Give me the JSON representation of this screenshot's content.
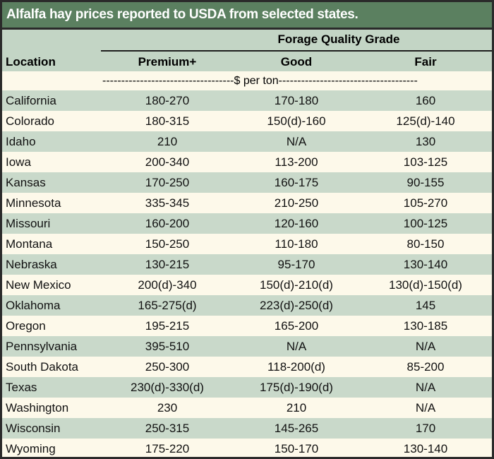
{
  "title": "Alfalfa hay prices reported to USDA from selected states.",
  "header": {
    "group": "Forage Quality Grade",
    "location": "Location",
    "columns": [
      "Premium+",
      "Good",
      "Fair"
    ],
    "unit": "-----------------------------------$ per ton-------------------------------------"
  },
  "rows": [
    {
      "location": "California",
      "premium": "180-270",
      "good": "170-180",
      "fair": "160"
    },
    {
      "location": "Colorado",
      "premium": "180-315",
      "good": "150(d)-160",
      "fair": "125(d)-140"
    },
    {
      "location": "Idaho",
      "premium": "210",
      "good": "N/A",
      "fair": "130"
    },
    {
      "location": "Iowa",
      "premium": "200-340",
      "good": "113-200",
      "fair": "103-125"
    },
    {
      "location": "Kansas",
      "premium": "170-250",
      "good": "160-175",
      "fair": "90-155"
    },
    {
      "location": "Minnesota",
      "premium": "335-345",
      "good": "210-250",
      "fair": "105-270"
    },
    {
      "location": "Missouri",
      "premium": "160-200",
      "good": "120-160",
      "fair": "100-125"
    },
    {
      "location": "Montana",
      "premium": "150-250",
      "good": "110-180",
      "fair": "80-150"
    },
    {
      "location": "Nebraska",
      "premium": "130-215",
      "good": "95-170",
      "fair": "130-140"
    },
    {
      "location": "New Mexico",
      "premium": "200(d)-340",
      "good": "150(d)-210(d)",
      "fair": "130(d)-150(d)"
    },
    {
      "location": "Oklahoma",
      "premium": "165-275(d)",
      "good": "223(d)-250(d)",
      "fair": "145"
    },
    {
      "location": "Oregon",
      "premium": "195-215",
      "good": "165-200",
      "fair": "130-185"
    },
    {
      "location": "Pennsylvania",
      "premium": "395-510",
      "good": "N/A",
      "fair": "N/A"
    },
    {
      "location": "South Dakota",
      "premium": "250-300",
      "good": "118-200(d)",
      "fair": "85-200"
    },
    {
      "location": "Texas",
      "premium": "230(d)-330(d)",
      "good": "175(d)-190(d)",
      "fair": "N/A"
    },
    {
      "location": "Washington",
      "premium": "230",
      "good": "210",
      "fair": "N/A"
    },
    {
      "location": "Wisconsin",
      "premium": "250-315",
      "good": "145-265",
      "fair": "170"
    },
    {
      "location": "Wyoming",
      "premium": "175-220",
      "good": "150-170",
      "fair": "130-140"
    }
  ]
}
